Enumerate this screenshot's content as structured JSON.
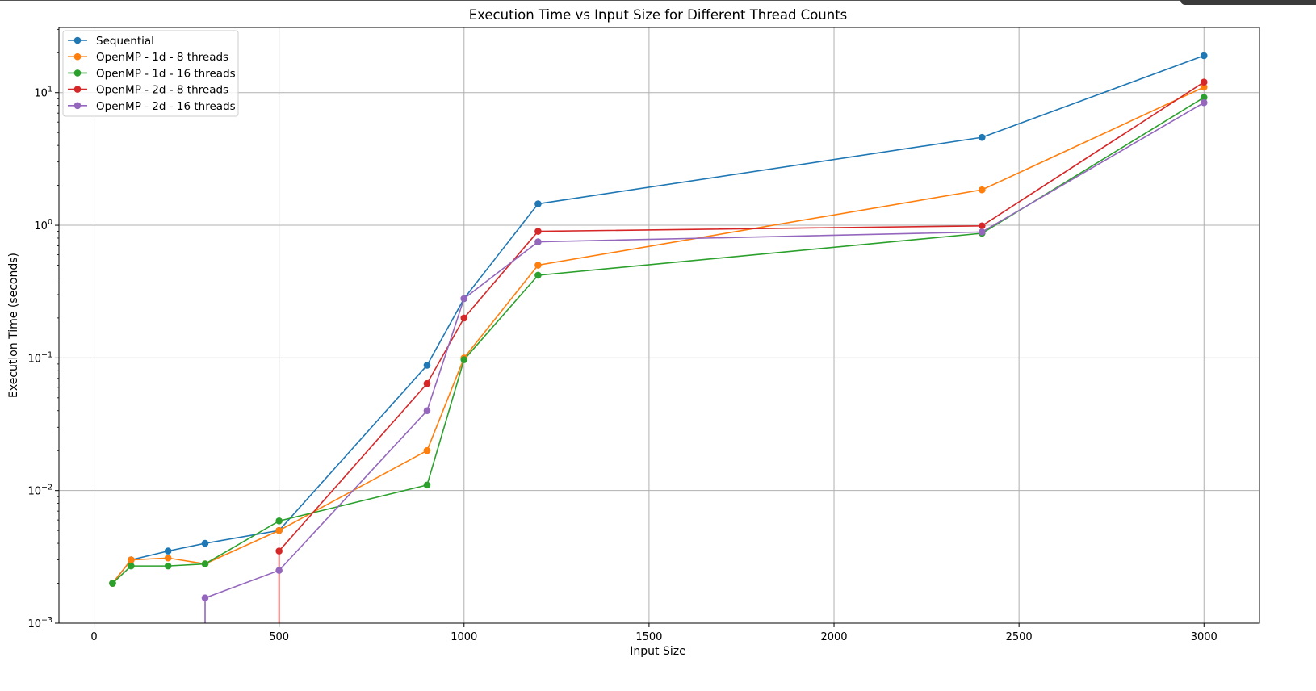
{
  "chart_data": {
    "type": "line",
    "title": "Execution Time vs Input Size for Different Thread Counts",
    "xlabel": "Input Size",
    "ylabel": "Execution Time (seconds)",
    "xlim": [
      -95,
      3150
    ],
    "ylim": [
      0.001,
      31
    ],
    "yscale": "log",
    "grid": true,
    "legend_position": "top-left",
    "x_ticks": [
      0,
      500,
      1000,
      1500,
      2000,
      2500,
      3000
    ],
    "y_ticks": [
      {
        "value": 0.001,
        "base": "10",
        "exp": "−3"
      },
      {
        "value": 0.01,
        "base": "10",
        "exp": "−2"
      },
      {
        "value": 0.1,
        "base": "10",
        "exp": "−1"
      },
      {
        "value": 1,
        "base": "10",
        "exp": "0"
      },
      {
        "value": 10,
        "base": "10",
        "exp": "1"
      }
    ],
    "series": [
      {
        "name": "Sequential",
        "color": "#1f77b4",
        "x": [
          50,
          100,
          200,
          300,
          500,
          900,
          1000,
          1200,
          2400,
          3000
        ],
        "y": [
          0.002,
          0.003,
          0.0035,
          0.004,
          0.005,
          0.088,
          0.28,
          1.45,
          4.6,
          19.0
        ]
      },
      {
        "name": "OpenMP - 1d - 8 threads",
        "color": "#ff7f0e",
        "x": [
          50,
          100,
          200,
          300,
          500,
          900,
          1000,
          1200,
          2400,
          3000
        ],
        "y": [
          0.002,
          0.003,
          0.0031,
          0.0028,
          0.005,
          0.02,
          0.1,
          0.5,
          1.85,
          11.0
        ]
      },
      {
        "name": "OpenMP - 1d - 16 threads",
        "color": "#2ca02c",
        "x": [
          50,
          100,
          200,
          300,
          500,
          900,
          1000,
          1200,
          2400,
          3000
        ],
        "y": [
          0.002,
          0.0027,
          0.0027,
          0.0028,
          0.0059,
          0.011,
          0.097,
          0.42,
          0.87,
          9.2
        ]
      },
      {
        "name": "OpenMP - 2d - 8 threads",
        "color": "#d62728",
        "x": [
          500,
          500,
          900,
          1000,
          1200,
          2400,
          3000
        ],
        "y": [
          0.0005,
          0.0035,
          0.064,
          0.2,
          0.9,
          0.99,
          12.0
        ]
      },
      {
        "name": "OpenMP - 2d - 16 threads",
        "color": "#9467bd",
        "x": [
          300,
          300,
          500,
          900,
          1000,
          1200,
          2400,
          3000
        ],
        "y": [
          0.0005,
          0.00155,
          0.0025,
          0.04,
          0.28,
          0.75,
          0.89,
          8.4
        ]
      }
    ]
  }
}
